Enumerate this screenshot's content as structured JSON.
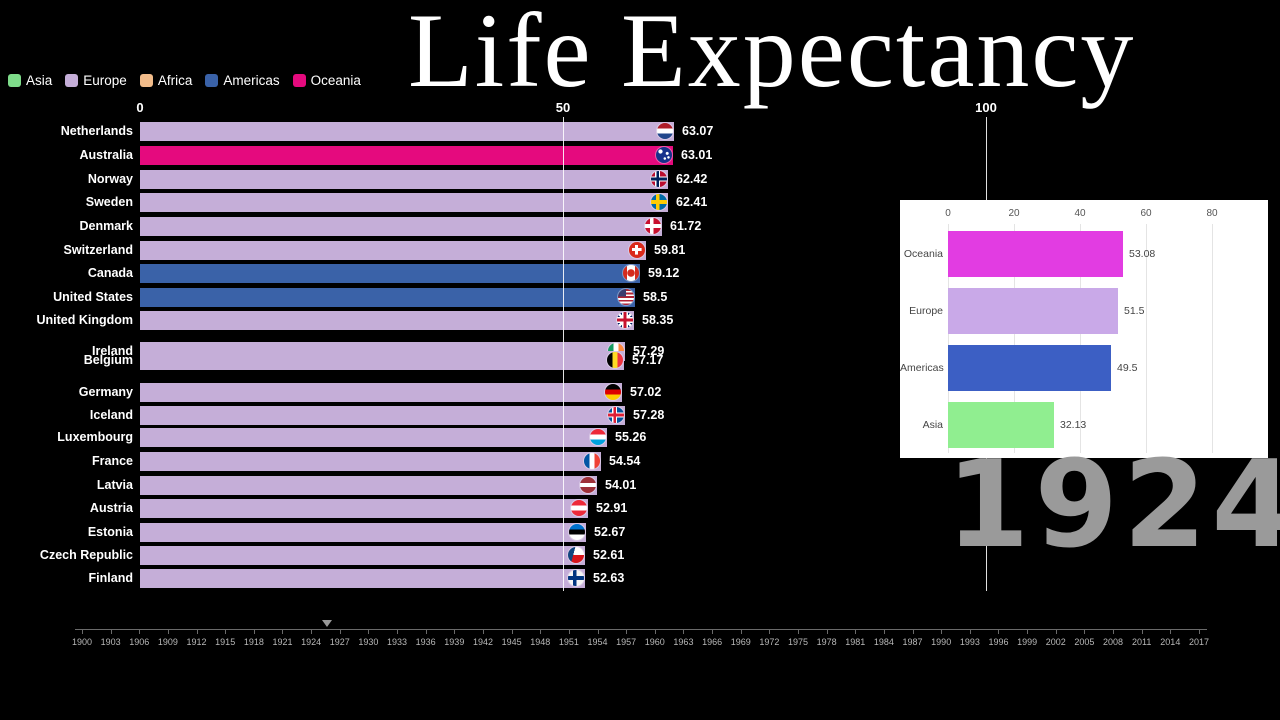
{
  "title": "Life Expectancy",
  "legend": [
    {
      "label": "Asia",
      "color": "#7edc8a"
    },
    {
      "label": "Europe",
      "color": "#c5aed8"
    },
    {
      "label": "Africa",
      "color": "#f2bc8a"
    },
    {
      "label": "Americas",
      "color": "#3a62a8"
    },
    {
      "label": "Oceania",
      "color": "#e50a7e"
    }
  ],
  "chart_data": {
    "type": "bar",
    "orientation": "horizontal",
    "title": "Life Expectancy",
    "xlabel": "",
    "ylabel": "",
    "x_ticks": [
      0,
      50,
      100
    ],
    "xlim": [
      0,
      100
    ],
    "year": "1924",
    "bars": [
      {
        "country": "Netherlands",
        "value": 63.07,
        "continent": "Europe",
        "flag": "nl"
      },
      {
        "country": "Australia",
        "value": 63.01,
        "continent": "Oceania",
        "flag": "au"
      },
      {
        "country": "Norway",
        "value": 62.42,
        "continent": "Europe",
        "flag": "no"
      },
      {
        "country": "Sweden",
        "value": 62.41,
        "continent": "Europe",
        "flag": "se"
      },
      {
        "country": "Denmark",
        "value": 61.72,
        "continent": "Europe",
        "flag": "dk"
      },
      {
        "country": "Switzerland",
        "value": 59.81,
        "continent": "Europe",
        "flag": "ch"
      },
      {
        "country": "Canada",
        "value": 59.12,
        "continent": "Americas",
        "flag": "ca"
      },
      {
        "country": "United States",
        "value": 58.5,
        "continent": "Americas",
        "flag": "us"
      },
      {
        "country": "United Kingdom",
        "value": 58.35,
        "continent": "Europe",
        "flag": "gb"
      },
      {
        "country": "Ireland",
        "value": 57.29,
        "continent": "Europe",
        "flag": "ie"
      },
      {
        "country": "Belgium",
        "value": 57.17,
        "continent": "Europe",
        "flag": "be"
      },
      {
        "country": "Germany",
        "value": 57.02,
        "continent": "Europe",
        "flag": "de"
      },
      {
        "country": "Iceland",
        "value": 57.28,
        "continent": "Europe",
        "flag": "is"
      },
      {
        "country": "Luxembourg",
        "value": 55.26,
        "continent": "Europe",
        "flag": "lu"
      },
      {
        "country": "France",
        "value": 54.54,
        "continent": "Europe",
        "flag": "fr"
      },
      {
        "country": "Latvia",
        "value": 54.01,
        "continent": "Europe",
        "flag": "lv"
      },
      {
        "country": "Austria",
        "value": 52.91,
        "continent": "Europe",
        "flag": "at"
      },
      {
        "country": "Estonia",
        "value": 52.67,
        "continent": "Europe",
        "flag": "ee"
      },
      {
        "country": "Czech Republic",
        "value": 52.61,
        "continent": "Europe",
        "flag": "cz"
      },
      {
        "country": "Finland",
        "value": 52.63,
        "continent": "Europe",
        "flag": "fi"
      }
    ],
    "inset": {
      "type": "bar",
      "orientation": "horizontal",
      "x_ticks": [
        0,
        20,
        40,
        60,
        80
      ],
      "xlim": [
        0,
        90
      ],
      "bars": [
        {
          "label": "Oceania",
          "value": 53.08,
          "color": "#e23ce2"
        },
        {
          "label": "Europe",
          "value": 51.5,
          "color": "#c9a9e8"
        },
        {
          "label": "Americas",
          "value": 49.5,
          "color": "#3c5fc4"
        },
        {
          "label": "Asia",
          "value": 32.13,
          "color": "#90ee90"
        }
      ]
    },
    "timeline": {
      "current": 1924,
      "ticks": [
        1900,
        1903,
        1906,
        1909,
        1912,
        1915,
        1918,
        1921,
        1924,
        1927,
        1930,
        1933,
        1936,
        1939,
        1942,
        1945,
        1948,
        1951,
        1954,
        1957,
        1960,
        1963,
        1966,
        1969,
        1972,
        1975,
        1978,
        1981,
        1984,
        1987,
        1990,
        1993,
        1996,
        1999,
        2002,
        2005,
        2008,
        2011,
        2014,
        2017
      ]
    }
  }
}
